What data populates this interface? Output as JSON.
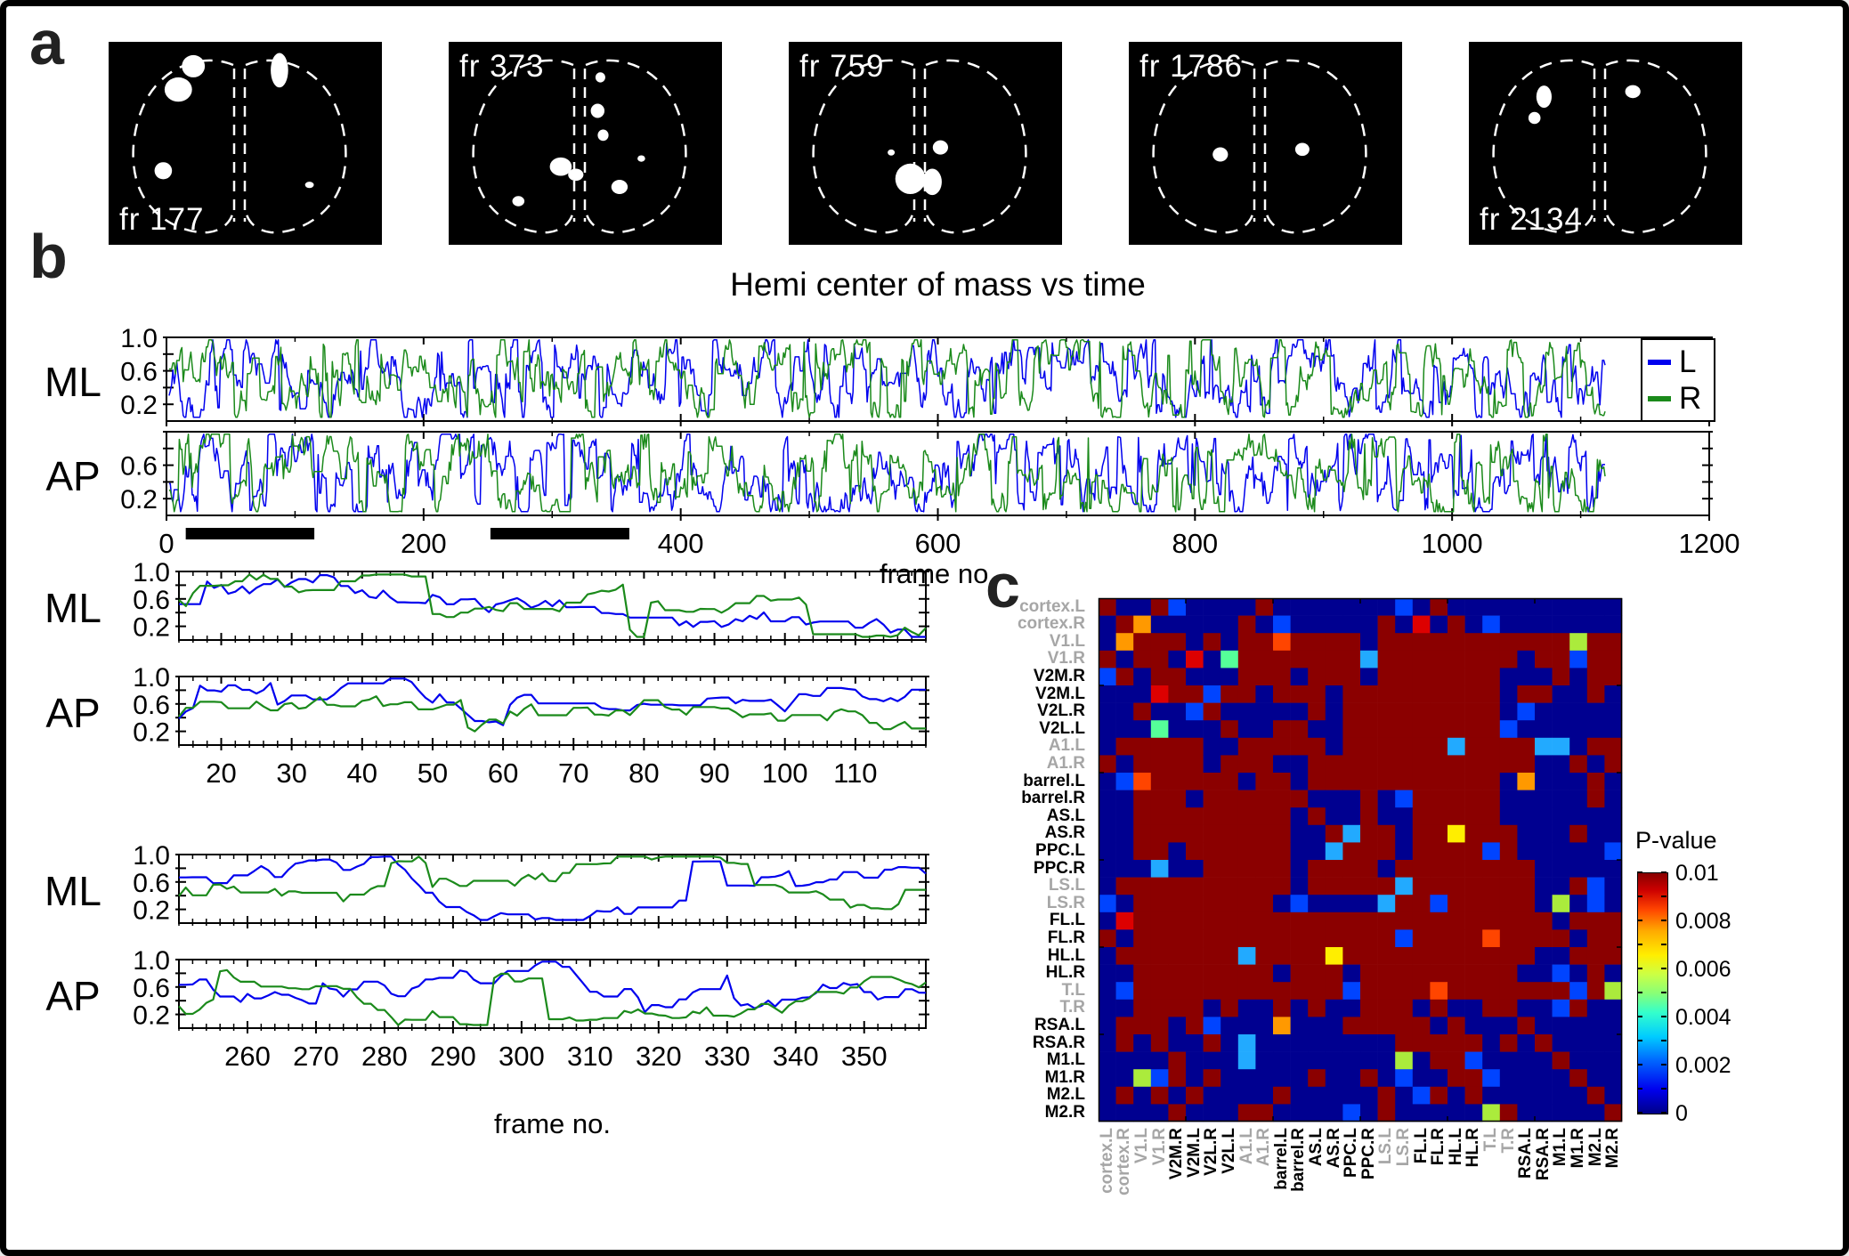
{
  "figure": {
    "background": "#FFFFFF",
    "border_color": "#000000"
  },
  "panel_a": {
    "label": "a",
    "images": [
      {
        "label": "fr 177",
        "label_pos": "bl",
        "blobs": [
          [
            0.31,
            0.12,
            0.042,
            0.055
          ],
          [
            0.255,
            0.235,
            0.05,
            0.06
          ],
          [
            0.625,
            0.14,
            0.032,
            0.085
          ],
          [
            0.2,
            0.635,
            0.032,
            0.042
          ],
          [
            0.735,
            0.705,
            0.016,
            0.016
          ]
        ]
      },
      {
        "label": "fr 373",
        "label_pos": "tl",
        "blobs": [
          [
            0.555,
            0.175,
            0.018,
            0.025
          ],
          [
            0.545,
            0.34,
            0.025,
            0.035
          ],
          [
            0.565,
            0.46,
            0.02,
            0.028
          ],
          [
            0.41,
            0.615,
            0.04,
            0.045
          ],
          [
            0.465,
            0.655,
            0.028,
            0.03
          ],
          [
            0.625,
            0.715,
            0.03,
            0.035
          ],
          [
            0.255,
            0.785,
            0.022,
            0.025
          ],
          [
            0.705,
            0.575,
            0.014,
            0.016
          ]
        ]
      },
      {
        "label": "fr 759",
        "label_pos": "tl",
        "blobs": [
          [
            0.375,
            0.545,
            0.013,
            0.015
          ],
          [
            0.555,
            0.52,
            0.028,
            0.035
          ],
          [
            0.445,
            0.675,
            0.055,
            0.075
          ],
          [
            0.525,
            0.69,
            0.035,
            0.065
          ]
        ]
      },
      {
        "label": "fr 1786",
        "label_pos": "tl",
        "blobs": [
          [
            0.335,
            0.555,
            0.028,
            0.035
          ],
          [
            0.635,
            0.53,
            0.026,
            0.032
          ]
        ]
      },
      {
        "label": "fr 2134",
        "label_pos": "bl",
        "blobs": [
          [
            0.275,
            0.27,
            0.028,
            0.055
          ],
          [
            0.24,
            0.375,
            0.022,
            0.03
          ],
          [
            0.6,
            0.245,
            0.028,
            0.032
          ]
        ]
      }
    ]
  },
  "panel_b": {
    "label": "b",
    "title": "Hemi center of mass vs time",
    "xlabel": "frame no.",
    "legend": [
      {
        "label": "L",
        "color": "#0000EE"
      },
      {
        "label": "R",
        "color": "#1B8A1B"
      }
    ]
  },
  "panel_c": {
    "label": "c",
    "colorbar_title": "P-value"
  },
  "chart_data": {
    "line_charts": [
      {
        "id": "overview-ml",
        "type": "line",
        "side_label": "ML",
        "x_range": [
          0,
          1200
        ],
        "y_range": [
          0,
          1
        ],
        "x_start": 2,
        "x_step": 1,
        "n": 1118,
        "xticks": [
          0,
          200,
          400,
          600,
          800,
          1000,
          1200
        ],
        "minor_x": 100,
        "show_xtick_labels": false,
        "xlabel": "",
        "ytick_labels": [
          [
            1,
            "1.0"
          ],
          [
            0.6,
            "0.6"
          ],
          [
            0.2,
            "0.2"
          ]
        ],
        "series": [
          {
            "name": "L",
            "color": "#0000EE",
            "seed": 101
          },
          {
            "name": "R",
            "color": "#1B8A1B",
            "seed": 102
          }
        ],
        "vol": 0.19,
        "jump": 0.17,
        "lw": 1.5
      },
      {
        "id": "overview-ap",
        "type": "line",
        "side_label": "AP",
        "x_range": [
          0,
          1200
        ],
        "y_range": [
          0,
          1
        ],
        "x_start": 2,
        "x_step": 1,
        "n": 1118,
        "xticks": [
          0,
          200,
          400,
          600,
          800,
          1000,
          1200
        ],
        "minor_x": 100,
        "show_xtick_labels": true,
        "xlabel": "frame no.",
        "bars": [
          [
            15,
            115
          ],
          [
            252,
            360
          ]
        ],
        "ytick_labels": [
          [
            0.6,
            "0.6"
          ],
          [
            0.2,
            "0.2"
          ]
        ],
        "series": [
          {
            "name": "L",
            "color": "#0000EE",
            "seed": 201
          },
          {
            "name": "R",
            "color": "#1B8A1B",
            "seed": 202
          }
        ],
        "vol": 0.19,
        "jump": 0.17,
        "lw": 1.5
      },
      {
        "id": "zoom1-ml",
        "type": "line",
        "side_label": "ML",
        "x_range": [
          14,
          120
        ],
        "y_range": [
          0,
          1
        ],
        "x_start": 14,
        "x_step": 1,
        "n": 107,
        "xticks": [
          20,
          30,
          40,
          50,
          60,
          70,
          80,
          90,
          100,
          110
        ],
        "minor_x": 2,
        "show_xtick_labels": false,
        "xlabel": "",
        "ytick_labels": [
          [
            1,
            "1.0"
          ],
          [
            0.6,
            "0.6"
          ],
          [
            0.2,
            "0.2"
          ]
        ],
        "series": [
          {
            "name": "L",
            "color": "#0000EE",
            "seed": 301
          },
          {
            "name": "R",
            "color": "#1B8A1B",
            "seed": 302
          }
        ],
        "vol": 0.13,
        "jump": 0.07,
        "lw": 2.2
      },
      {
        "id": "zoom1-ap",
        "type": "line",
        "side_label": "AP",
        "x_range": [
          14,
          120
        ],
        "y_range": [
          0,
          1
        ],
        "x_start": 14,
        "x_step": 1,
        "n": 107,
        "xticks": [
          20,
          30,
          40,
          50,
          60,
          70,
          80,
          90,
          100,
          110
        ],
        "minor_x": 2,
        "show_xtick_labels": true,
        "xlabel": "",
        "ytick_labels": [
          [
            1,
            "1.0"
          ],
          [
            0.6,
            "0.6"
          ],
          [
            0.2,
            "0.2"
          ]
        ],
        "series": [
          {
            "name": "L",
            "color": "#0000EE",
            "seed": 401
          },
          {
            "name": "R",
            "color": "#1B8A1B",
            "seed": 402
          }
        ],
        "vol": 0.13,
        "jump": 0.07,
        "lw": 2.2
      },
      {
        "id": "zoom2-ml",
        "type": "line",
        "side_label": "ML",
        "x_range": [
          250,
          359
        ],
        "y_range": [
          0,
          1
        ],
        "x_start": 250,
        "x_step": 1,
        "n": 110,
        "xticks": [
          260,
          270,
          280,
          290,
          300,
          310,
          320,
          330,
          340,
          350
        ],
        "minor_x": 2,
        "show_xtick_labels": false,
        "xlabel": "",
        "ytick_labels": [
          [
            1,
            "1.0"
          ],
          [
            0.6,
            "0.6"
          ],
          [
            0.2,
            "0.2"
          ]
        ],
        "series": [
          {
            "name": "L",
            "color": "#0000EE",
            "seed": 501
          },
          {
            "name": "R",
            "color": "#1B8A1B",
            "seed": 502
          }
        ],
        "vol": 0.13,
        "jump": 0.07,
        "lw": 2.2
      },
      {
        "id": "zoom2-ap",
        "type": "line",
        "side_label": "AP",
        "x_range": [
          250,
          359
        ],
        "y_range": [
          0,
          1
        ],
        "x_start": 250,
        "x_step": 1,
        "n": 110,
        "xticks": [
          260,
          270,
          280,
          290,
          300,
          310,
          320,
          330,
          340,
          350
        ],
        "minor_x": 2,
        "show_xtick_labels": true,
        "xlabel": "frame no.",
        "ytick_labels": [
          [
            1,
            "1.0"
          ],
          [
            0.6,
            "0.6"
          ],
          [
            0.2,
            "0.2"
          ]
        ],
        "series": [
          {
            "name": "L",
            "color": "#0000EE",
            "seed": 601
          },
          {
            "name": "R",
            "color": "#1B8A1B",
            "seed": 602
          }
        ],
        "vol": 0.13,
        "jump": 0.07,
        "lw": 2.2
      }
    ],
    "heatmap": {
      "type": "heatmap",
      "labels": [
        "cortex.L",
        "cortex.R",
        "V1.L",
        "V1.R",
        "V2M.R",
        "V2M.L",
        "V2L.R",
        "V2L.L",
        "A1.L",
        "A1.R",
        "barrel.L",
        "barrel.R",
        "AS.L",
        "AS.R",
        "PPC.L",
        "PPC.R",
        "LS.L",
        "LS.R",
        "FL.L",
        "FL.R",
        "HL.L",
        "HL.R",
        "T.L",
        "T.R",
        "RSA.L",
        "RSA.R",
        "M1.L",
        "M1.R",
        "M2.L",
        "M2.R"
      ],
      "gray_label_indices": [
        0,
        1,
        2,
        3,
        8,
        9,
        16,
        17,
        22,
        23
      ],
      "rows": [
        "RBBRbBBBBRBBBBBBBbBRBBBBBBBBBB",
        "BROBBBBBRBbBBBBBRBrBRBbBBBBBBB",
        "BORRRBRBRRoRRRRBRRRRRRRRRRRyRR",
        "RBRRBrBgRRRRRRRcRRRRRRRRBRRbRR",
        "bRBRRBBBRRRBRRRBRRRRRRRBBBRBRR",
        "BBBrRRbRRBRRRBRRRRRRRRRBRRBBRB",
        "BBRBBbRBBBBBRBRRRRRRRRRBbBBBBB",
        "BBBgBBBRBBRRBBRRRRRRRRRbBBBBBB",
        "BRRRRRBBRRRRRBRRRRRRcRRRRccBRR",
        "RBRRRRBRRRBBRRRRRRRRRRRRRBBRBR",
        "BboRRRRRBRRBRRRRRRRRRRRBOBBBRB",
        "BBRRRBRRRRRRBBBRBbRRRRRBBBBBRB",
        "BBRRRRRRRRRBRBBRBBRRRRRBBBBBBB",
        "BBRRRRRRRRRBBRcRRBRRYRRRBBBRBB",
        "BBRRBRRRRRRBBcRRRBRRRRbRBBBBBb",
        "BBBcBBRRRRRBRRRRBRRRRRRRRBBBBB",
        "BRRRRRRRRRRBRRRRRcRRRRRRRBBRbB",
        "bBRRRRRRRRBbBBBBcRRbRRRRRByBbB",
        "BrRRRRRRRRRRRRRRRRRRRRRRRRBRRR",
        "RBRRRRRRRRRRRRRRRbRRRRoRRRRBRR",
        "BRRRRRRRcRRRRYRRRRRRRRRRRBBRRR",
        "BBRRRRRRRRBRRRBRRRRRRRRRBBbBRB",
        "BbRRRRRRRRRRRRbRRRRoRRRRRRRbRy",
        "BBRRRRBRBBRBRBBRRRBRBBRRBBbRBB",
        "BRRRBRbBBBOBBBRRRRRBRBBBRBBBBB",
        "BRBRBBRBcBBBBBBBBRRRRRBRBRBBBB",
        "BBBBRBBBcBBBBBBBByBRRbBBBBRBBB",
        "BBybRBRBBBBBRBBRBbBBRRbBBBBRBB",
        "BRBRBRBBBBRBBBBBRBbRBRBBBBBBRB",
        "BBBBRBBBRRBBBBbBRBBBBByRBBBBBR"
      ],
      "palette": {
        "R": "#8B0000",
        "r": "#DD0000",
        "o": "#FF4500",
        "O": "#FF9900",
        "Y": "#FFEE00",
        "y": "#ABEB3C",
        "g": "#55FF99",
        "c": "#22AAFF",
        "b": "#0044FF",
        "B": "#000090"
      },
      "value_map_p": {
        "R": "0.01",
        "r": "0.009",
        "o": "0.0085",
        "O": "0.008",
        "Y": "0.0065",
        "y": "0.006",
        "g": "0.005",
        "c": "0.003",
        "b": "0.0015",
        "B": "0"
      },
      "colorbar": {
        "title": "P-value",
        "min": 0,
        "max": 0.01,
        "tick_values": [
          0,
          0.002,
          0.004,
          0.006,
          0.008,
          0.01
        ],
        "tick_labels": [
          "0",
          "0.002",
          "0.004",
          "0.006",
          "0.008",
          "0.01"
        ]
      }
    }
  }
}
